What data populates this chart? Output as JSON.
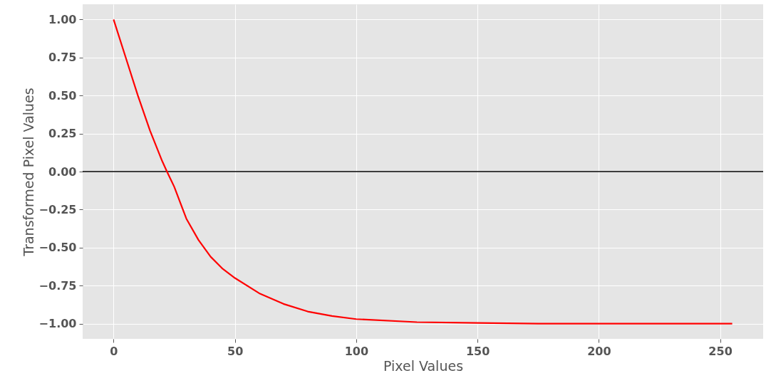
{
  "chart_data": {
    "type": "line",
    "xlabel": "Pixel Values",
    "ylabel": "Transformed Pixel Values",
    "x": [
      0,
      5,
      10,
      15,
      20,
      22,
      25,
      30,
      35,
      40,
      45,
      50,
      60,
      70,
      80,
      90,
      100,
      125,
      150,
      175,
      200,
      225,
      255
    ],
    "series": [
      {
        "color": "#ff0000",
        "values": [
          1,
          0.75,
          0.5,
          0.27,
          0.07,
          0,
          -0.1,
          -0.31,
          -0.45,
          -0.56,
          -0.64,
          -0.7,
          -0.8,
          -0.87,
          -0.92,
          -0.95,
          -0.97,
          -0.99,
          -0.995,
          -1,
          -1,
          -1,
          -1
        ]
      }
    ],
    "xlim": [
      -12.75,
      267.75
    ],
    "xticks": [
      0,
      50,
      100,
      150,
      200,
      250
    ],
    "ylim": [
      -1.1,
      1.1
    ],
    "yticks": [
      {
        "value": -1,
        "label": "−1.00"
      },
      {
        "value": -0.75,
        "label": "−0.75"
      },
      {
        "value": -0.5,
        "label": "−0.50"
      },
      {
        "value": -0.25,
        "label": "−0.25"
      },
      {
        "value": 0,
        "label": "0.00"
      },
      {
        "value": 0.25,
        "label": "0.25"
      },
      {
        "value": 0.5,
        "label": "0.50"
      },
      {
        "value": 0.75,
        "label": "0.75"
      },
      {
        "value": 1,
        "label": "1.00"
      }
    ],
    "ref_lines": [
      {
        "axis": "y",
        "value": 0,
        "color": "#000000"
      }
    ],
    "grid": true,
    "marker": "none",
    "line_style": "solid"
  }
}
